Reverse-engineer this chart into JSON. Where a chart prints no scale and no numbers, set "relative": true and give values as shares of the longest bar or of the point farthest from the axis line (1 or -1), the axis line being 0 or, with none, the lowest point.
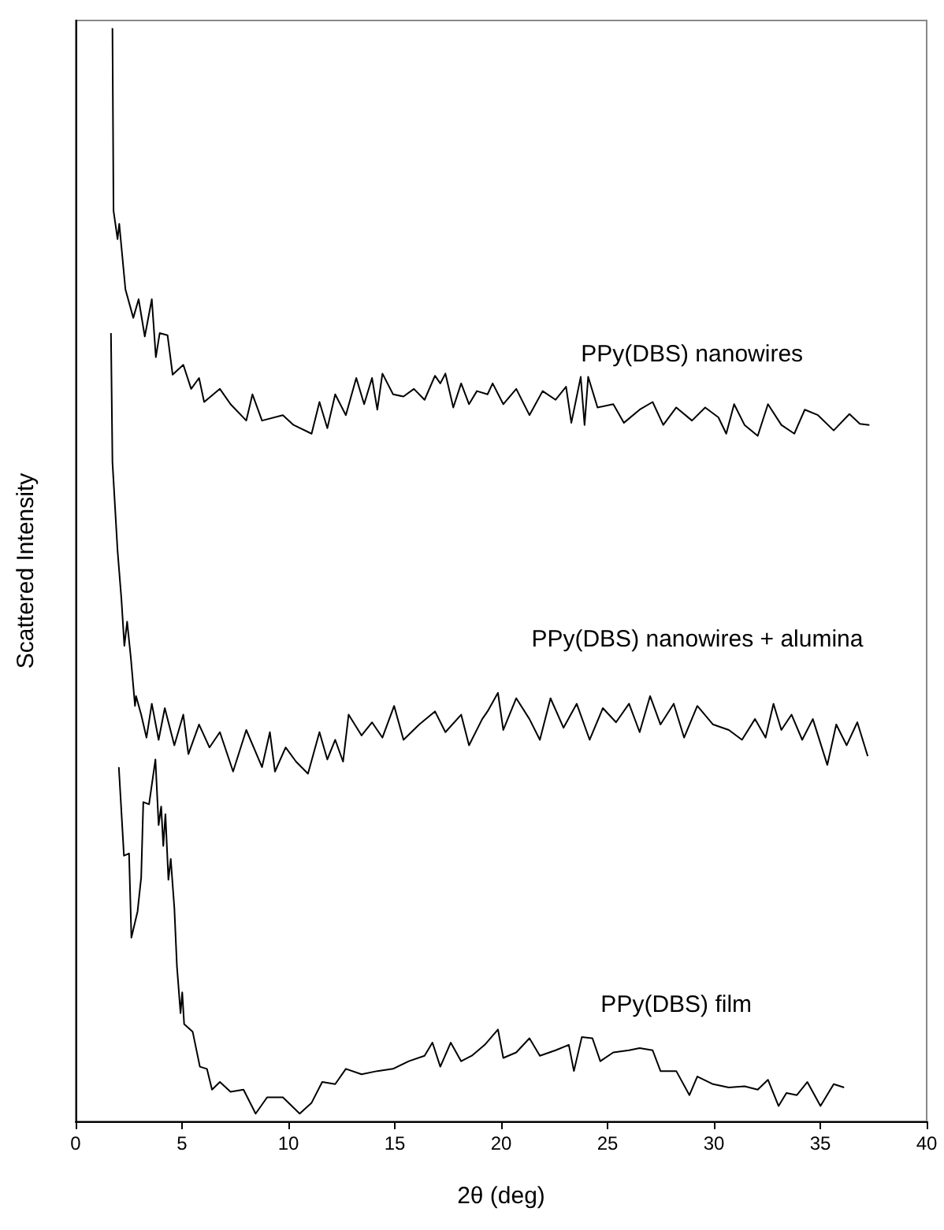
{
  "chart_data": {
    "type": "line",
    "xlabel": "2θ (deg)",
    "ylabel": "Scattered Intensity",
    "relative": true,
    "xlim": [
      0,
      40
    ],
    "xticks": [
      0,
      5,
      10,
      15,
      20,
      25,
      30,
      35,
      40
    ],
    "grid": false,
    "legend": false,
    "marker": "none",
    "line_style": "solid",
    "series": [
      {
        "name": "PPy(DBS) nanowires",
        "color": "#000000",
        "x": [
          1.73,
          1.78,
          1.97,
          2.05,
          2.34,
          2.71,
          2.96,
          3.25,
          3.58,
          3.77,
          3.95,
          4.32,
          4.56,
          5.06,
          5.43,
          5.8,
          6.04,
          6.78,
          7.28,
          8.02,
          8.31,
          8.76,
          9.74,
          10.24,
          11.09,
          11.46,
          11.83,
          12.2,
          12.7,
          13.19,
          13.56,
          13.93,
          14.18,
          14.42,
          14.92,
          15.41,
          15.9,
          16.4,
          16.89,
          17.14,
          17.38,
          17.75,
          18.12,
          18.49,
          18.86,
          19.36,
          19.6,
          20.1,
          20.71,
          21.33,
          21.95,
          22.56,
          23.05,
          23.3,
          23.74,
          23.92,
          24.09,
          24.53,
          25.27,
          25.77,
          26.51,
          27.12,
          27.62,
          28.23,
          28.97,
          29.59,
          30.21,
          30.58,
          30.95,
          31.44,
          32.06,
          32.54,
          33.17,
          33.78,
          34.27,
          34.89,
          35.63,
          36.37,
          36.86,
          37.31
        ],
        "values": [
          1.0,
          0.833,
          0.807,
          0.821,
          0.761,
          0.735,
          0.752,
          0.718,
          0.752,
          0.699,
          0.721,
          0.719,
          0.683,
          0.692,
          0.67,
          0.68,
          0.658,
          0.67,
          0.656,
          0.641,
          0.665,
          0.641,
          0.646,
          0.637,
          0.629,
          0.658,
          0.634,
          0.665,
          0.646,
          0.68,
          0.656,
          0.68,
          0.651,
          0.684,
          0.665,
          0.663,
          0.67,
          0.66,
          0.682,
          0.675,
          0.684,
          0.653,
          0.675,
          0.656,
          0.668,
          0.665,
          0.675,
          0.656,
          0.67,
          0.646,
          0.668,
          0.66,
          0.672,
          0.639,
          0.681,
          0.637,
          0.681,
          0.653,
          0.656,
          0.639,
          0.651,
          0.658,
          0.637,
          0.653,
          0.641,
          0.653,
          0.644,
          0.629,
          0.656,
          0.637,
          0.627,
          0.656,
          0.637,
          0.629,
          0.651,
          0.646,
          0.632,
          0.647,
          0.638,
          0.637
        ]
      },
      {
        "name": "PPy(DBS) nanowires + alumina",
        "color": "#000000",
        "x": [
          1.66,
          1.73,
          1.97,
          2.15,
          2.29,
          2.42,
          2.59,
          2.79,
          2.84,
          3.08,
          3.33,
          3.58,
          3.9,
          4.19,
          4.64,
          5.06,
          5.3,
          5.8,
          6.29,
          6.78,
          7.4,
          8.02,
          8.76,
          9.13,
          9.37,
          9.87,
          10.36,
          10.92,
          11.46,
          11.83,
          12.2,
          12.57,
          12.83,
          13.44,
          13.93,
          14.42,
          14.97,
          15.41,
          16.15,
          16.89,
          17.38,
          18.12,
          18.49,
          19.11,
          19.36,
          19.85,
          20.1,
          20.71,
          21.33,
          21.82,
          22.32,
          22.93,
          23.55,
          24.16,
          24.78,
          25.4,
          26.01,
          26.51,
          27.0,
          27.49,
          28.11,
          28.6,
          29.22,
          29.96,
          30.7,
          31.32,
          31.93,
          32.43,
          32.8,
          33.17,
          33.65,
          34.15,
          34.65,
          35.33,
          35.75,
          36.24,
          36.74,
          37.23
        ],
        "values": [
          0.721,
          0.603,
          0.522,
          0.478,
          0.435,
          0.457,
          0.425,
          0.38,
          0.389,
          0.372,
          0.351,
          0.382,
          0.349,
          0.378,
          0.344,
          0.372,
          0.336,
          0.363,
          0.342,
          0.356,
          0.32,
          0.358,
          0.324,
          0.356,
          0.32,
          0.342,
          0.329,
          0.318,
          0.356,
          0.331,
          0.349,
          0.329,
          0.372,
          0.353,
          0.365,
          0.351,
          0.38,
          0.349,
          0.363,
          0.375,
          0.356,
          0.372,
          0.344,
          0.368,
          0.375,
          0.392,
          0.358,
          0.387,
          0.368,
          0.349,
          0.387,
          0.36,
          0.382,
          0.349,
          0.378,
          0.365,
          0.382,
          0.356,
          0.389,
          0.363,
          0.382,
          0.351,
          0.38,
          0.363,
          0.358,
          0.349,
          0.368,
          0.351,
          0.382,
          0.358,
          0.372,
          0.349,
          0.368,
          0.326,
          0.363,
          0.344,
          0.365,
          0.334
        ]
      },
      {
        "name": "PPy(DBS) film",
        "color": "#000000",
        "x": [
          2.03,
          2.27,
          2.51,
          2.62,
          2.91,
          3.08,
          3.18,
          3.45,
          3.75,
          3.9,
          4.02,
          4.12,
          4.22,
          4.36,
          4.47,
          4.64,
          4.76,
          4.93,
          5.01,
          5.1,
          5.5,
          5.84,
          6.17,
          6.41,
          6.78,
          7.28,
          7.89,
          8.46,
          9.0,
          9.74,
          10.53,
          11.09,
          11.59,
          12.2,
          12.7,
          13.44,
          14.18,
          14.92,
          15.66,
          16.4,
          16.77,
          17.14,
          17.63,
          18.12,
          18.62,
          19.23,
          19.85,
          20.1,
          20.71,
          21.33,
          21.82,
          22.56,
          23.18,
          23.42,
          23.79,
          24.29,
          24.66,
          25.27,
          26.01,
          26.51,
          27.12,
          27.49,
          28.23,
          28.85,
          29.22,
          29.96,
          30.7,
          31.44,
          32.06,
          32.54,
          33.04,
          33.41,
          33.9,
          34.39,
          35.01,
          35.63,
          36.12
        ],
        "values": [
          0.324,
          0.243,
          0.245,
          0.168,
          0.192,
          0.223,
          0.292,
          0.29,
          0.331,
          0.271,
          0.288,
          0.252,
          0.281,
          0.221,
          0.24,
          0.195,
          0.142,
          0.099,
          0.118,
          0.089,
          0.082,
          0.05,
          0.048,
          0.029,
          0.036,
          0.027,
          0.029,
          0.007,
          0.022,
          0.022,
          0.007,
          0.017,
          0.036,
          0.034,
          0.048,
          0.043,
          0.046,
          0.048,
          0.055,
          0.06,
          0.072,
          0.05,
          0.072,
          0.055,
          0.06,
          0.07,
          0.084,
          0.058,
          0.063,
          0.076,
          0.06,
          0.065,
          0.07,
          0.046,
          0.077,
          0.076,
          0.055,
          0.063,
          0.065,
          0.067,
          0.065,
          0.046,
          0.046,
          0.024,
          0.041,
          0.034,
          0.031,
          0.032,
          0.029,
          0.038,
          0.014,
          0.026,
          0.024,
          0.036,
          0.014,
          0.034,
          0.031
        ]
      }
    ]
  }
}
